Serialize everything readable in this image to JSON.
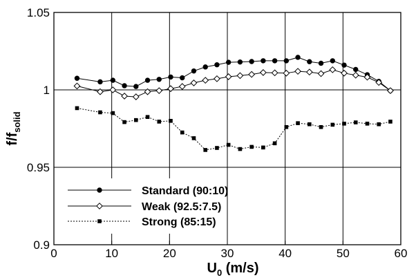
{
  "chart_data": {
    "type": "line",
    "xlabel": {
      "main": "U",
      "sub": "0",
      "rest": " (m/s)"
    },
    "ylabel": {
      "main": "f/f",
      "sub": "solid"
    },
    "xlim": [
      0,
      60
    ],
    "ylim": [
      0.9,
      1.05
    ],
    "x_ticks": [
      "0",
      "10",
      "20",
      "30",
      "40",
      "50",
      "60"
    ],
    "y_ticks": [
      "0.9",
      "0.95",
      "1",
      "1.05"
    ],
    "grid": "major gridlines",
    "legend_position": "lower-left",
    "series": [
      {
        "name": "Standard (90:10)",
        "marker": "filled-circle",
        "line": "solid",
        "x": [
          4,
          8,
          10.2,
          12.2,
          14.2,
          16.2,
          18.2,
          20.2,
          22.2,
          24.2,
          26.2,
          28.2,
          30.2,
          32.2,
          34.2,
          36.2,
          38.2,
          40.2,
          42.2,
          44.2,
          46.2,
          48.2,
          50.2,
          52.2,
          54.2,
          56.2,
          58.2
        ],
        "y": [
          1.0075,
          1.0052,
          1.0062,
          1.0027,
          1.0022,
          1.0062,
          1.0068,
          1.0083,
          1.0078,
          1.0122,
          1.0148,
          1.0162,
          1.0178,
          1.018,
          1.0183,
          1.0188,
          1.0188,
          1.0188,
          1.021,
          1.0182,
          1.0172,
          1.0188,
          1.016,
          1.0132,
          1.0098,
          1.0055,
          0.9995
        ]
      },
      {
        "name": "Weak (92.5:7.5)",
        "marker": "open-diamond",
        "line": "solid",
        "x": [
          4,
          8,
          10.2,
          12.2,
          14.2,
          16.2,
          18.2,
          20.2,
          22.2,
          24.2,
          26.2,
          28.2,
          30.2,
          32.2,
          34.2,
          36.2,
          38.2,
          40.2,
          42.2,
          44.2,
          46.2,
          48.2,
          50.2,
          52.2,
          54.2,
          56.2,
          58.2
        ],
        "y": [
          1.0025,
          0.9988,
          1.0,
          0.996,
          0.9955,
          0.9988,
          0.9995,
          1.0008,
          1.0022,
          1.0045,
          1.0062,
          1.0072,
          1.0085,
          1.0092,
          1.01,
          1.0112,
          1.011,
          1.0108,
          1.012,
          1.0115,
          1.0105,
          1.013,
          1.0108,
          1.0095,
          1.0082,
          1.0048,
          0.9995
        ]
      },
      {
        "name": "Strong (85:15)",
        "marker": "filled-square",
        "line": "dotted",
        "x": [
          4,
          8,
          10.2,
          12.2,
          14.2,
          16.2,
          18.2,
          20.2,
          22.2,
          24.2,
          26.2,
          28.2,
          30.2,
          32.2,
          34.2,
          36.2,
          38.2,
          40.2,
          42.2,
          44.2,
          46.2,
          48.2,
          50.2,
          52.2,
          54.2,
          56.2,
          58.2
        ],
        "y": [
          0.9882,
          0.9855,
          0.985,
          0.9792,
          0.9805,
          0.9825,
          0.9795,
          0.98,
          0.9725,
          0.9688,
          0.9612,
          0.9625,
          0.9645,
          0.9618,
          0.9632,
          0.9628,
          0.9655,
          0.976,
          0.9785,
          0.9778,
          0.976,
          0.9775,
          0.9782,
          0.979,
          0.9782,
          0.9778,
          0.9795
        ]
      }
    ]
  }
}
